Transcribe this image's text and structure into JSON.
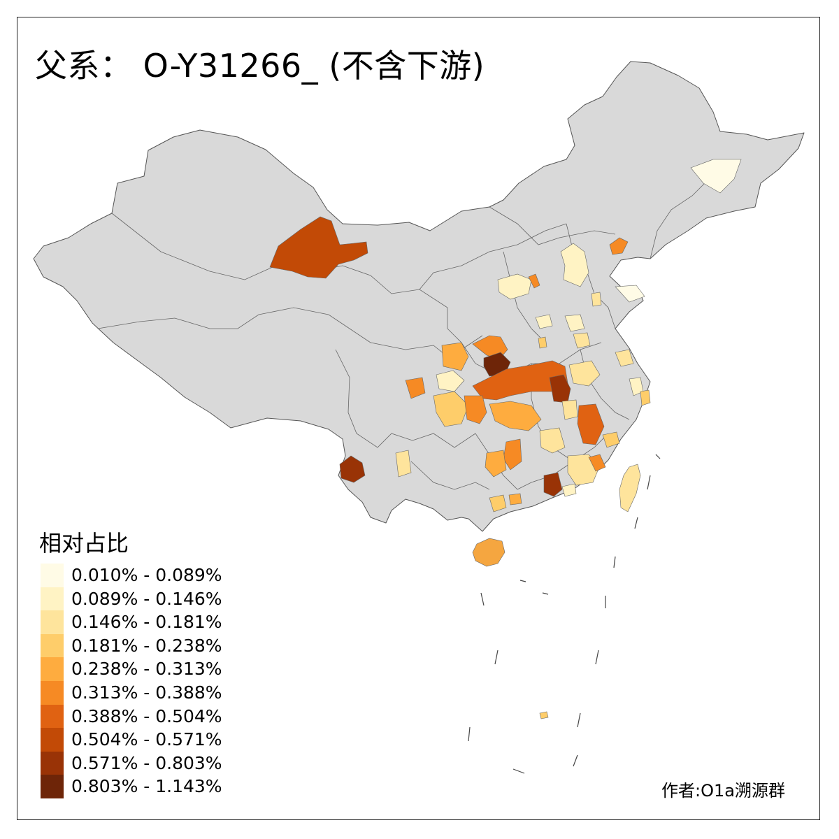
{
  "title": "父系： O-Y31266_ (不含下游)",
  "legend": {
    "title": "相对占比",
    "items": [
      {
        "label": "0.010% - 0.089%",
        "color": "#fffbe6"
      },
      {
        "label": "0.089% - 0.146%",
        "color": "#fff3c4"
      },
      {
        "label": "0.146% - 0.181%",
        "color": "#fee49c"
      },
      {
        "label": "0.181% - 0.238%",
        "color": "#fecd6a"
      },
      {
        "label": "0.238% - 0.313%",
        "color": "#feac3f"
      },
      {
        "label": "0.313% - 0.388%",
        "color": "#f68a24"
      },
      {
        "label": "0.388% - 0.504%",
        "color": "#e06212"
      },
      {
        "label": "0.504% - 0.571%",
        "color": "#c24a06"
      },
      {
        "label": "0.571% - 0.803%",
        "color": "#993306"
      },
      {
        "label": "0.803% - 1.143%",
        "color": "#6e2508"
      }
    ]
  },
  "credit": "作者:O1a溯源群",
  "colors": {
    "land": "#d9d9d9",
    "border": "#555555",
    "background": "#ffffff"
  }
}
